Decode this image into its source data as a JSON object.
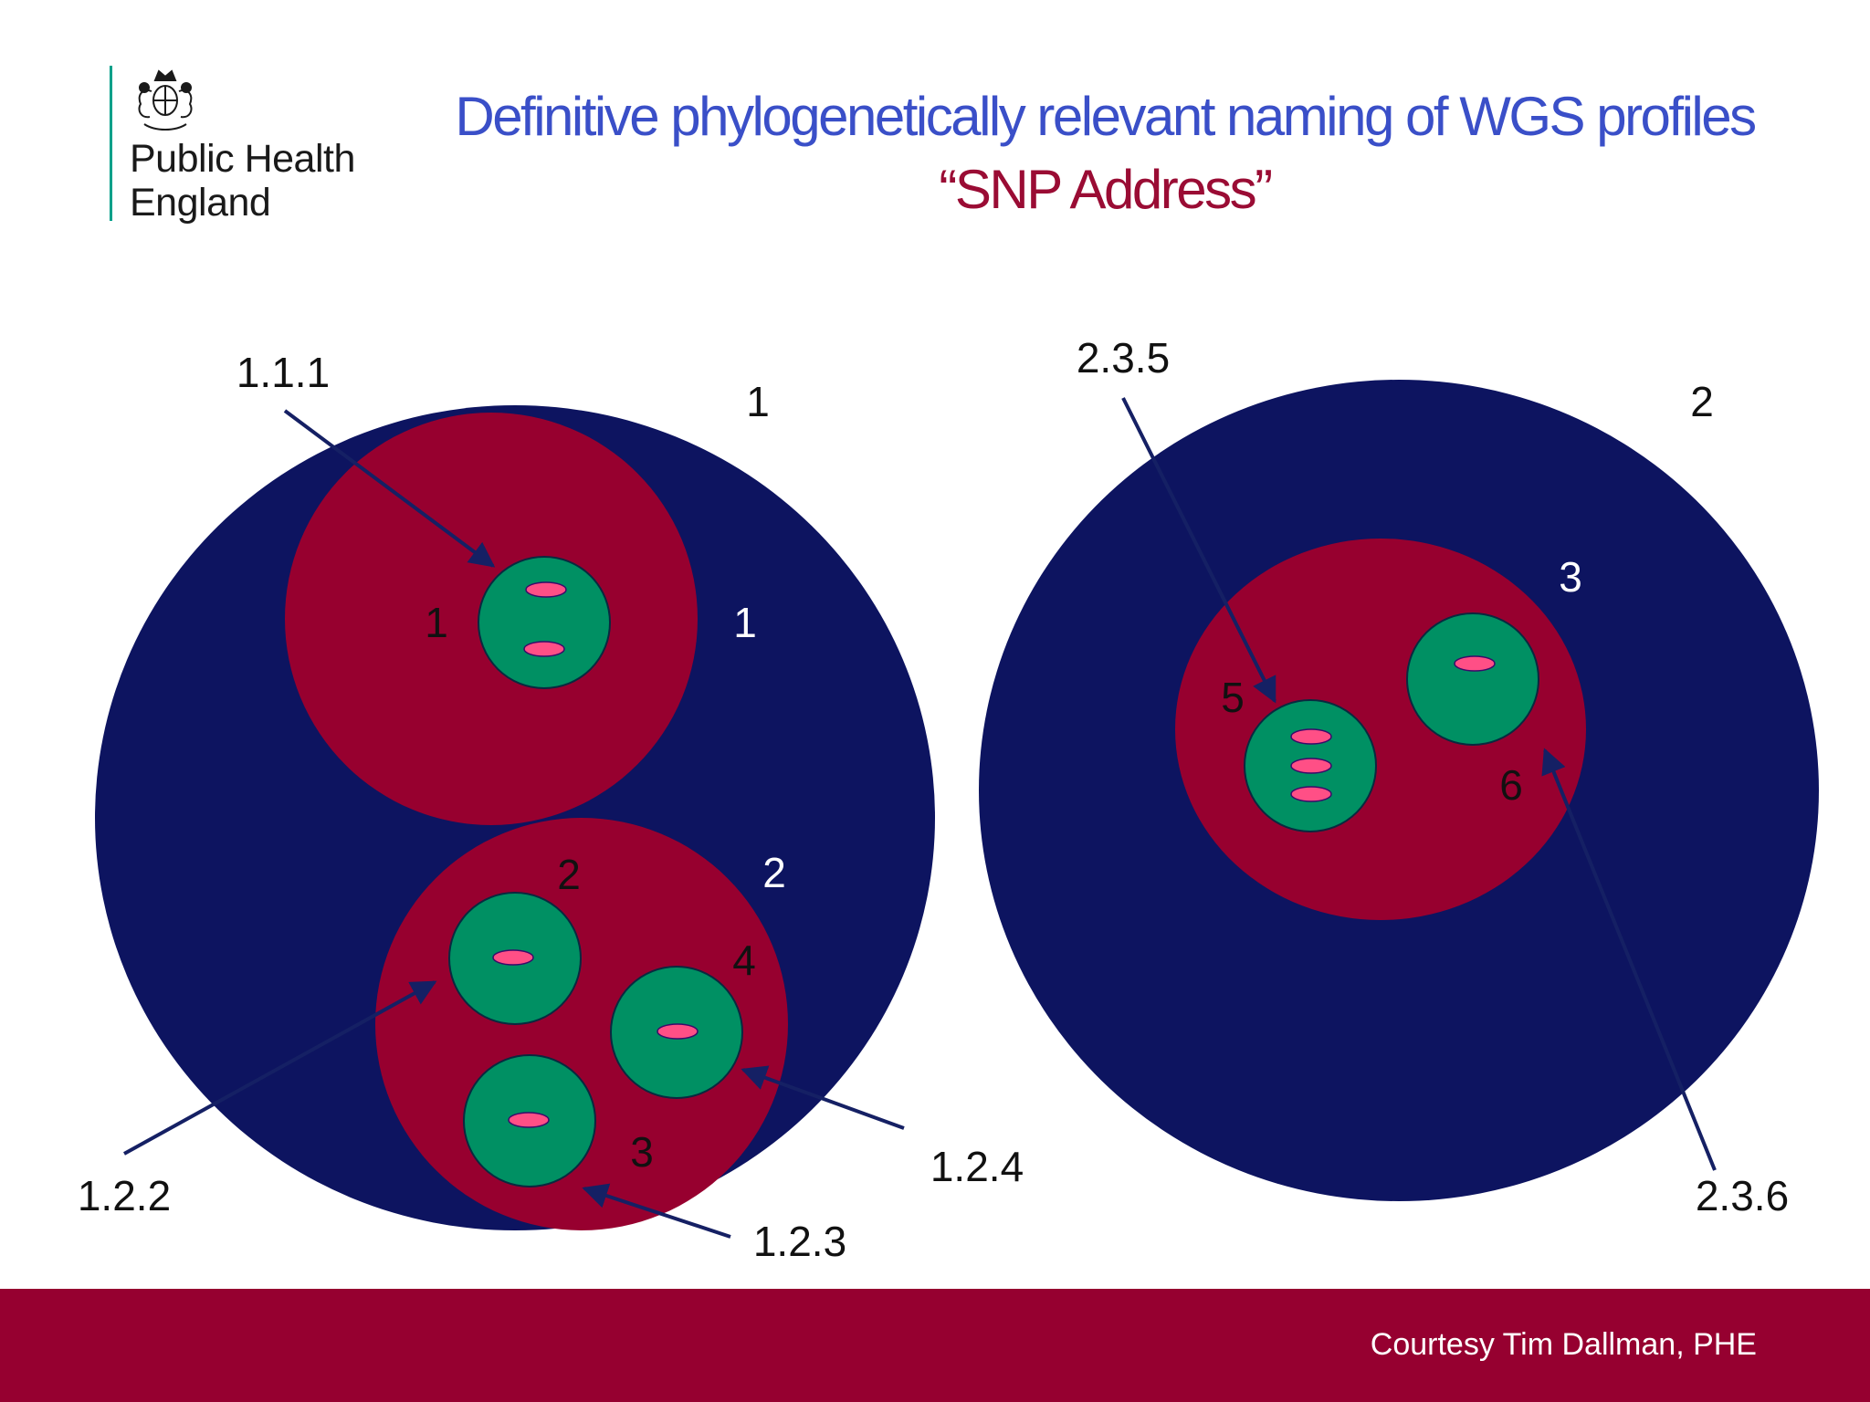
{
  "logo": {
    "line1": "Public Health",
    "line2": "England"
  },
  "title": "Definitive phylogenetically relevant naming of WGS profiles",
  "subtitle": "“SNP Address”",
  "footer": {
    "credit": "Courtesy Tim Dallman, PHE"
  },
  "colors": {
    "outer_cluster": "#0d1460",
    "middle_cluster": "#97002f",
    "inner_cluster": "#009063",
    "isolate": "#ff4f86",
    "arrow": "#152064",
    "title": "#3a4fc8",
    "subtitle": "#9a0c34"
  },
  "labels": {
    "outer_left": "1",
    "outer_right": "2",
    "left_upper_mid_left": "1",
    "left_upper_mid_right": "1",
    "left_lower_inner_top": "2",
    "left_lower_mid_right": "2",
    "left_lower_inner_right": "4",
    "left_lower_inner_bottom": "3",
    "right_mid_top": "3",
    "right_inner_left": "5",
    "right_inner_right": "6"
  },
  "addresses": {
    "a111": "1.1.1",
    "a122": "1.2.2",
    "a123": "1.2.3",
    "a124": "1.2.4",
    "a235": "2.3.5",
    "a236": "2.3.6"
  }
}
